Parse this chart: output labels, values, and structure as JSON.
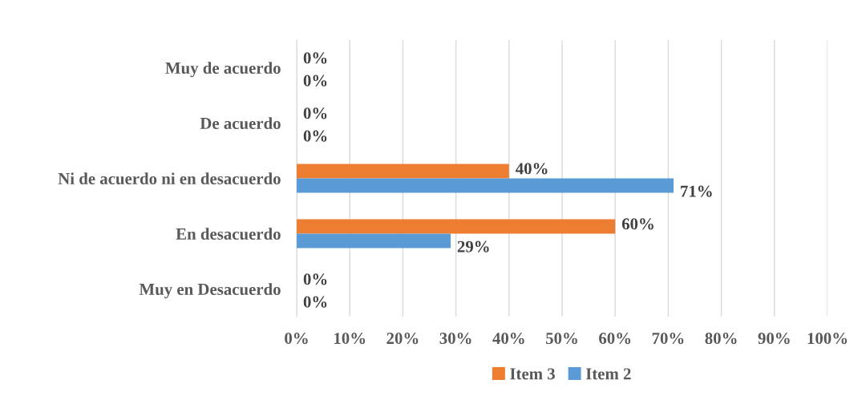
{
  "chart_data": {
    "type": "bar",
    "orientation": "horizontal",
    "categories": [
      "Muy de acuerdo",
      "De acuerdo",
      "Ni de acuerdo ni en desacuerdo",
      "En desacuerdo",
      "Muy en Desacuerdo"
    ],
    "series": [
      {
        "name": "Item 3",
        "color": "#ed7d31",
        "values": [
          0,
          0,
          40,
          60,
          0
        ],
        "value_labels": [
          "0%",
          "0%",
          "40%",
          "60%",
          "0%"
        ]
      },
      {
        "name": "Item 2",
        "color": "#5b9bd5",
        "values": [
          0,
          0,
          71,
          29,
          0
        ],
        "value_labels": [
          "0%",
          "0%",
          "71%",
          "29%",
          "0%"
        ]
      }
    ],
    "xlim": [
      0,
      100
    ],
    "xticks": [
      {
        "value": 0,
        "label": "0%"
      },
      {
        "value": 10,
        "label": "10%"
      },
      {
        "value": 20,
        "label": "20%"
      },
      {
        "value": 30,
        "label": "30%"
      },
      {
        "value": 40,
        "label": "40%"
      },
      {
        "value": 50,
        "label": "50%"
      },
      {
        "value": 60,
        "label": "60%"
      },
      {
        "value": 70,
        "label": "70%"
      },
      {
        "value": 80,
        "label": "80%"
      },
      {
        "value": 90,
        "label": "90%"
      },
      {
        "value": 100,
        "label": "100%"
      }
    ],
    "grid": "x",
    "legend": "bottom"
  }
}
